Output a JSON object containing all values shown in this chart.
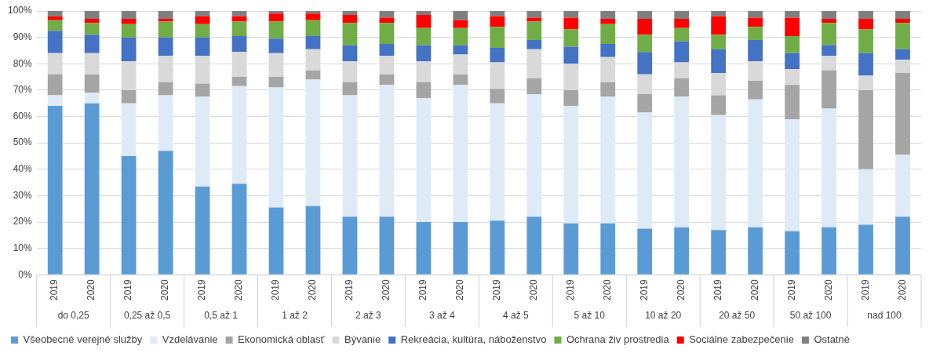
{
  "chart_data": {
    "type": "bar",
    "stacked": true,
    "categories": [
      "2019",
      "2020",
      "2019",
      "2020",
      "2019",
      "2020",
      "2019",
      "2020",
      "2019",
      "2020",
      "2019",
      "2020",
      "2019",
      "2020",
      "2019",
      "2020",
      "2019",
      "2020",
      "2019",
      "2020",
      "2019",
      "2020",
      "2019",
      "2020"
    ],
    "annotations": [
      "do 0,25",
      "0,25 až 0,5",
      "0,5 až 1",
      "1 až 2",
      "2 až 3",
      "3 až 4",
      "4 až 5",
      "5 až 10",
      "10 až 20",
      "20 až 50",
      "50 až 100",
      "nad 100"
    ],
    "series": [
      {
        "name": "Všeobecné verejné služby",
        "color": "#5b9bd5",
        "values": [
          64,
          65,
          45,
          47,
          33.5,
          34.5,
          25.5,
          26,
          22,
          22,
          20,
          20,
          20.5,
          22,
          19.5,
          19.5,
          17.5,
          18,
          17,
          18,
          16.5,
          18,
          19,
          22
        ]
      },
      {
        "name": "Vzdelávanie",
        "color": "#deebf7",
        "values": [
          4,
          4,
          20,
          21,
          34,
          37,
          45.5,
          48,
          46,
          50,
          47,
          52,
          44.5,
          46.5,
          44.5,
          48,
          44,
          49.5,
          43.5,
          48.5,
          42.5,
          45,
          21,
          23.5
        ]
      },
      {
        "name": "Ekonomická oblasť",
        "color": "#a5a5a5",
        "values": [
          8,
          7,
          5,
          5,
          5,
          3.5,
          4,
          3.5,
          5,
          4,
          6,
          4,
          5.5,
          6,
          6,
          5.5,
          7,
          7,
          7.5,
          7,
          13,
          14.5,
          30,
          31
        ]
      },
      {
        "name": "Bývanie",
        "color": "#d9d9d9",
        "values": [
          8,
          8,
          11,
          10,
          10.5,
          9.5,
          9,
          8,
          8,
          7,
          8,
          7.5,
          10,
          11,
          10,
          9.5,
          7.5,
          6,
          8.5,
          7.5,
          6,
          5.5,
          5.5,
          5
        ]
      },
      {
        "name": "Rekreácia, kultúra, náboženstvo",
        "color": "#4472c4",
        "values": [
          8.5,
          7,
          9,
          7,
          7,
          6,
          5.5,
          5,
          6,
          4.5,
          6,
          3.5,
          5.5,
          3.5,
          6.5,
          5,
          8.5,
          8,
          9,
          8,
          6,
          4,
          8.5,
          4
        ]
      },
      {
        "name": "Ochrana živ prostredia",
        "color": "#70ad47",
        "values": [
          4,
          4.5,
          5,
          6,
          5,
          5.5,
          6.5,
          6,
          8.5,
          8,
          6.5,
          6.5,
          8,
          7,
          6.5,
          7.5,
          6.5,
          5,
          5.5,
          5,
          6.5,
          8.5,
          9,
          10
        ]
      },
      {
        "name": "Sociálne zabezpečenie",
        "color": "#ff0000",
        "values": [
          1.5,
          1.5,
          2,
          1,
          3,
          2,
          3,
          2.5,
          3,
          2,
          5,
          3,
          4,
          1.5,
          4.5,
          2,
          6,
          3.5,
          7,
          3.5,
          7,
          1.5,
          4,
          1.5
        ]
      },
      {
        "name": "Ostatné",
        "color": "#7f7f7f",
        "values": [
          2,
          3,
          3,
          3,
          2,
          2,
          1,
          1,
          1.5,
          2.5,
          1.5,
          3.5,
          2,
          2.5,
          2.5,
          3,
          3,
          3,
          2,
          2.5,
          2.5,
          3,
          3,
          3
        ]
      }
    ],
    "ylim": [
      0,
      100
    ],
    "yticks": [
      {
        "value": 0,
        "label": "0%"
      },
      {
        "value": 10,
        "label": "10%"
      },
      {
        "value": 20,
        "label": "20%"
      },
      {
        "value": 30,
        "label": "30%"
      },
      {
        "value": 40,
        "label": "40%"
      },
      {
        "value": 50,
        "label": "50%"
      },
      {
        "value": 60,
        "label": "60%"
      },
      {
        "value": 70,
        "label": "70%"
      },
      {
        "value": 80,
        "label": "80%"
      },
      {
        "value": 90,
        "label": "90%"
      },
      {
        "value": 100,
        "label": "100%"
      }
    ],
    "grid": "y",
    "legend": "bottom"
  }
}
